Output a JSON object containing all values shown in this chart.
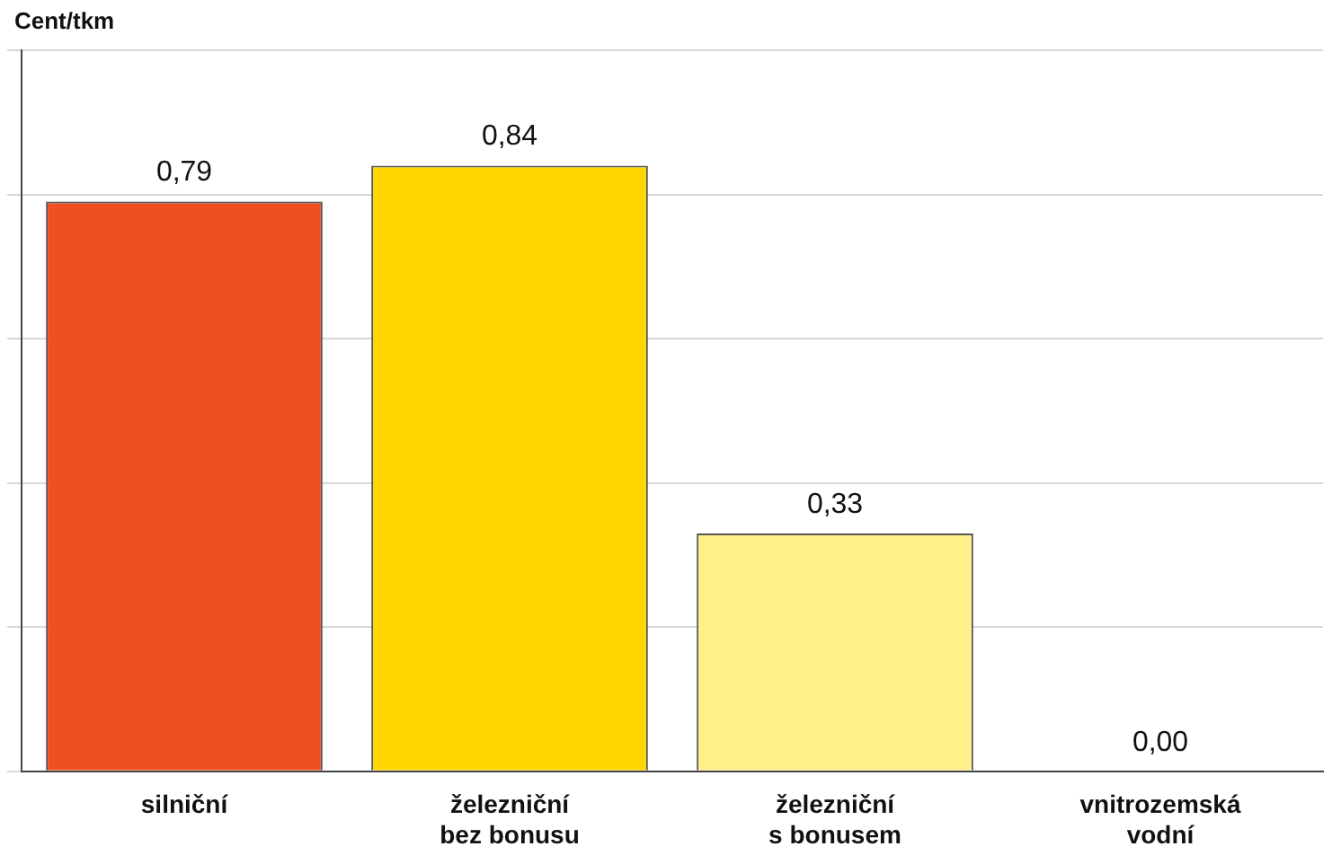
{
  "chart_data": {
    "type": "bar",
    "ylabel": "Cent/tkm",
    "categories": [
      "silniční",
      "železniční\nbez bonusu",
      "železniční\ns bonusem",
      "vnitrozemská\nvodní"
    ],
    "values": [
      0.79,
      0.84,
      0.33,
      0.0
    ],
    "colors": [
      "#f04e23",
      "#ffd700",
      "#fff08a",
      "#1f4e9c"
    ],
    "value_labels": [
      "0,79",
      "0,84",
      "0,33",
      "0,00"
    ],
    "ylim": [
      0,
      1
    ],
    "yticks": [
      {
        "value": 0,
        "label": null
      },
      {
        "value": 0.2,
        "label": null
      },
      {
        "value": 0.4,
        "label": null
      },
      {
        "value": 0.6,
        "label": null
      },
      {
        "value": 0.8,
        "label": null
      },
      {
        "value": 1,
        "label": null
      }
    ],
    "grid": "y",
    "legend": false,
    "tick_labels": "x"
  }
}
